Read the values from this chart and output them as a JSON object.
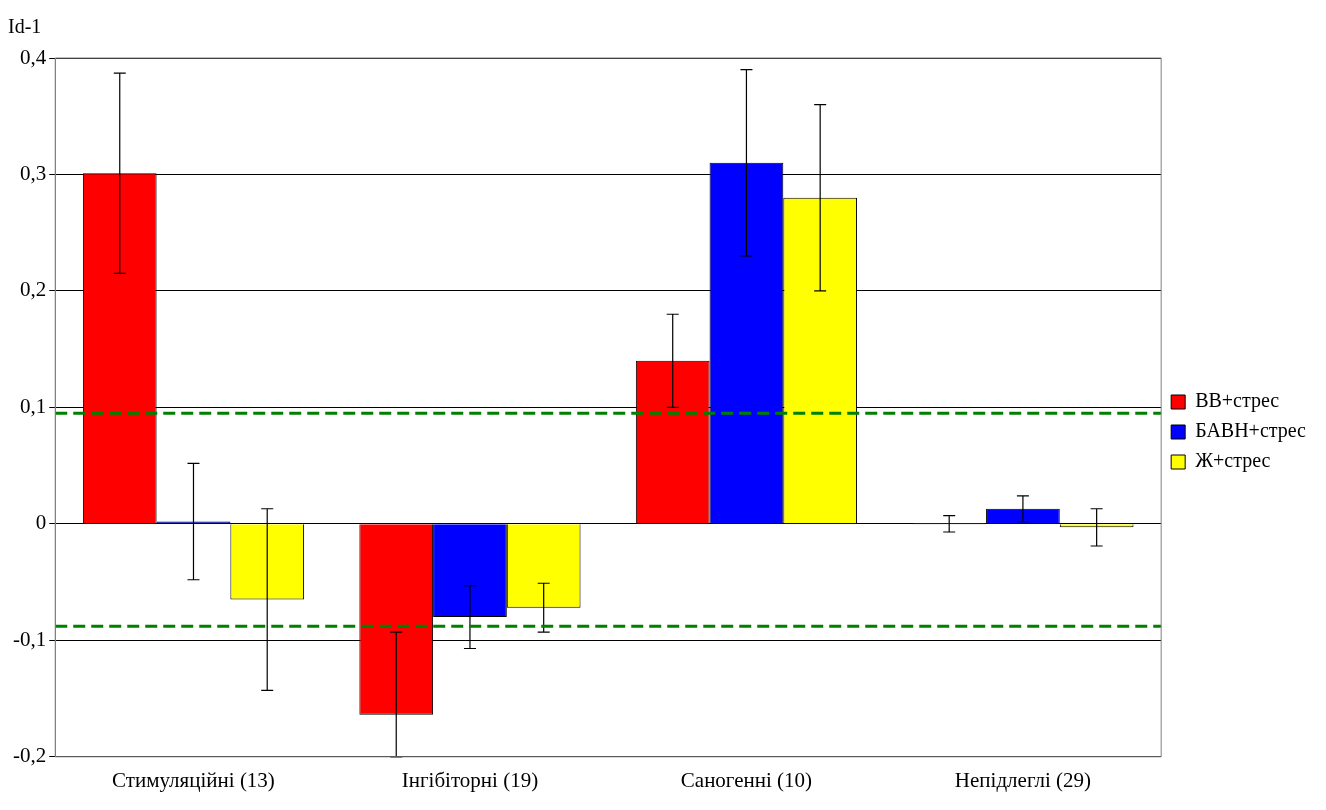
{
  "chart_data": {
    "type": "bar",
    "ylabel": "Id-1",
    "categories": [
      "Стимуляційні (13)",
      "Інгібіторні (19)",
      "Саногенні (10)",
      "Непідлеглі (29)"
    ],
    "series": [
      {
        "name": "ВВ+стрес",
        "color": "#ff0000",
        "values": [
          0.301,
          -0.164,
          0.14,
          0.0
        ],
        "errors": [
          [
            0.215,
            0.387
          ],
          [
            -0.2,
            -0.093
          ],
          [
            0.1,
            0.18
          ],
          [
            -0.007,
            0.007
          ]
        ]
      },
      {
        "name": "БАВН+стрес",
        "color": "#0000ff",
        "values": [
          0.002,
          -0.08,
          0.31,
          0.013
        ],
        "errors": [
          [
            -0.048,
            0.052
          ],
          [
            -0.107,
            -0.053
          ],
          [
            0.23,
            0.39
          ],
          [
            0.002,
            0.024
          ]
        ]
      },
      {
        "name": "Ж+стрес",
        "color": "#ffff00",
        "values": [
          -0.065,
          -0.072,
          0.28,
          -0.003
        ],
        "errors": [
          [
            -0.143,
            0.013
          ],
          [
            -0.093,
            -0.051
          ],
          [
            0.2,
            0.36
          ],
          [
            -0.019,
            0.013
          ]
        ]
      }
    ],
    "ylim": [
      -0.2,
      0.4
    ],
    "yticks": [
      {
        "value": -0.2,
        "label": "-0,2"
      },
      {
        "value": -0.1,
        "label": "-0,1"
      },
      {
        "value": 0,
        "label": "0"
      },
      {
        "value": 0.1,
        "label": "0,1"
      },
      {
        "value": 0.2,
        "label": "0,2"
      },
      {
        "value": 0.3,
        "label": "0,3"
      },
      {
        "value": 0.4,
        "label": "0,4"
      }
    ],
    "ref_lines": [
      {
        "axis": "y",
        "value": 0.095,
        "color": "#008000",
        "line_style": "dashed"
      },
      {
        "axis": "y",
        "value": -0.088,
        "color": "#008000",
        "line_style": "dashed"
      }
    ],
    "grid": "y",
    "legend": "right"
  }
}
